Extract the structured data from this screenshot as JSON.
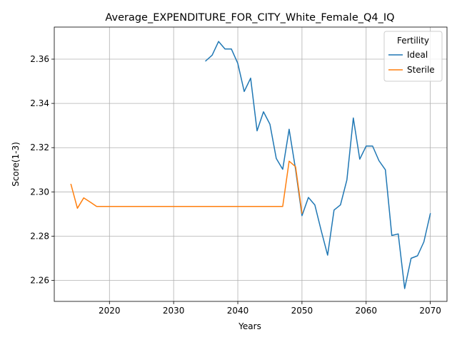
{
  "chart_data": {
    "type": "line",
    "title": "Average_EXPENDITURE_FOR_CITY_White_Female_Q4_IQ",
    "xlabel": "Years",
    "ylabel": "Score(1-3)",
    "xlim": [
      2011.4,
      2072.6
    ],
    "ylim": [
      2.2505,
      2.3745
    ],
    "xticks": [
      2020,
      2030,
      2040,
      2050,
      2060,
      2070
    ],
    "yticks": [
      2.26,
      2.28,
      2.3,
      2.32,
      2.34,
      2.36
    ],
    "ytick_labels": [
      "2.26",
      "2.28",
      "2.30",
      "2.32",
      "2.34",
      "2.36"
    ],
    "grid": true,
    "legend": {
      "title": "Fertility",
      "placement": "top-right"
    },
    "series": [
      {
        "name": "Ideal",
        "color": "#1f77b4",
        "x": [
          2035,
          2036,
          2037,
          2038,
          2039,
          2040,
          2041,
          2042,
          2043,
          2044,
          2045,
          2046,
          2047,
          2048,
          2049,
          2050,
          2051,
          2052,
          2053,
          2054,
          2055,
          2056,
          2057,
          2058,
          2059,
          2060,
          2061,
          2062,
          2063,
          2064,
          2065,
          2066,
          2067,
          2068,
          2069,
          2070
        ],
        "y": [
          2.3592,
          2.3618,
          2.368,
          2.3646,
          2.3646,
          2.3581,
          2.3454,
          2.3514,
          2.3276,
          2.3362,
          2.3306,
          2.3151,
          2.3102,
          2.3283,
          2.3102,
          2.2892,
          2.2975,
          2.2941,
          2.2824,
          2.2714,
          2.2918,
          2.2941,
          2.3054,
          2.3334,
          2.3148,
          2.3207,
          2.3207,
          2.3141,
          2.31,
          2.2803,
          2.281,
          2.2563,
          2.27,
          2.2711,
          2.2774,
          2.2901
        ]
      },
      {
        "name": "Sterile",
        "color": "#ff7f0e",
        "x": [
          2014,
          2015,
          2016,
          2017,
          2018,
          2019,
          2020,
          2025,
          2030,
          2035,
          2040,
          2045,
          2046,
          2047,
          2048,
          2049,
          2050
        ],
        "y": [
          2.3034,
          2.2926,
          2.2973,
          2.2954,
          2.2934,
          2.2934,
          2.2934,
          2.2934,
          2.2934,
          2.2934,
          2.2934,
          2.2934,
          2.2934,
          2.2934,
          2.3139,
          2.3114,
          2.2904
        ]
      }
    ]
  }
}
